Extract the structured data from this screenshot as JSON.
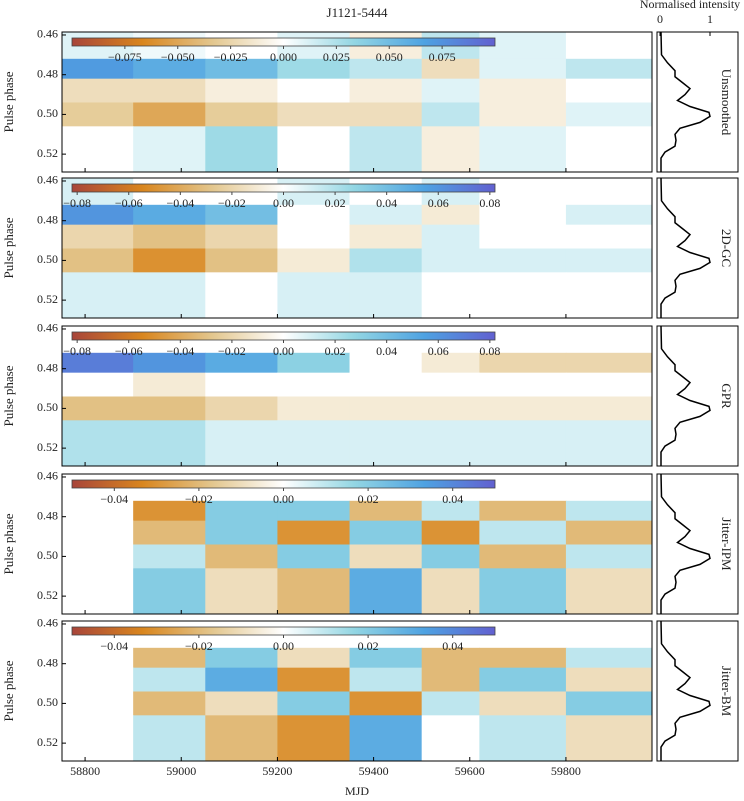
{
  "chart_data": {
    "type": "heatmap",
    "title": "J1121-5444",
    "xlabel": "MJD",
    "ylabel": "Pulse phase",
    "xlim": [
      58752,
      59979
    ],
    "xticks": [
      58800,
      59000,
      59200,
      59400,
      59600,
      59800
    ],
    "ylim": [
      0.4585,
      0.529
    ],
    "yticks": [
      0.46,
      0.48,
      {
        "value": 0.5,
        "label": "0.50"
      },
      0.52
    ],
    "x_edges": [
      58752,
      58900,
      59050,
      59200,
      59350,
      59500,
      59620,
      59800,
      59979
    ],
    "y_edges": [
      0.4585,
      0.472,
      0.482,
      0.494,
      0.506,
      0.529
    ],
    "colorscale": [
      "#a8453a",
      "#d9861e",
      "#e3c78f",
      "#ffffff",
      "#93d6e3",
      "#4ea2e2",
      "#6260d0"
    ],
    "panels": [
      {
        "label": "Unsmoothed",
        "clim": [
          -0.1,
          0.1
        ],
        "cticks": [
          {
            "value": -0.075,
            "label": "−0.075"
          },
          {
            "value": -0.05,
            "label": "−0.050"
          },
          {
            "value": -0.025,
            "label": "−0.025"
          },
          {
            "value": 0,
            "label": "0.000"
          },
          0.025,
          {
            "value": 0.05,
            "label": "0.050"
          },
          0.075
        ],
        "z": [
          [
            0.01,
            0.005,
            0.0,
            0.01,
            -0.01,
            0.02,
            0.01,
            0.0
          ],
          [
            0.07,
            0.06,
            0.05,
            0.03,
            0.02,
            -0.02,
            0.01,
            0.02
          ],
          [
            -0.02,
            -0.02,
            -0.01,
            0.0,
            -0.01,
            0.01,
            -0.01,
            0.0
          ],
          [
            -0.03,
            -0.05,
            -0.03,
            -0.02,
            -0.02,
            0.02,
            -0.01,
            0.01
          ],
          [
            0.0,
            0.01,
            0.03,
            0.0,
            0.02,
            -0.01,
            0.01,
            0.0
          ]
        ]
      },
      {
        "label": "2D-GC",
        "clim": [
          -0.082,
          0.082
        ],
        "cticks": [
          {
            "value": -0.08,
            "label": "−0.08"
          },
          {
            "value": -0.06,
            "label": "−0.06"
          },
          {
            "value": -0.04,
            "label": "−0.04"
          },
          {
            "value": -0.02,
            "label": "−0.02"
          },
          {
            "value": 0,
            "label": "0.00"
          },
          0.02,
          0.04,
          0.06,
          0.08
        ],
        "z": [
          [
            0.01,
            0.0,
            0.0,
            0.01,
            0.0,
            0.01,
            0.0,
            0.0
          ],
          [
            0.06,
            0.05,
            0.04,
            0.0,
            0.01,
            -0.01,
            0.0,
            0.01
          ],
          [
            -0.02,
            -0.03,
            -0.02,
            0.0,
            -0.01,
            0.01,
            0.0,
            0.0
          ],
          [
            -0.03,
            -0.05,
            -0.03,
            -0.01,
            0.02,
            0.01,
            0.01,
            0.01
          ],
          [
            0.01,
            0.01,
            0.0,
            0.01,
            0.01,
            0.0,
            0.0,
            0.0
          ]
        ]
      },
      {
        "label": "GPR",
        "clim": [
          -0.082,
          0.082
        ],
        "cticks": [
          {
            "value": -0.08,
            "label": "−0.08"
          },
          {
            "value": -0.06,
            "label": "−0.06"
          },
          {
            "value": -0.04,
            "label": "−0.04"
          },
          {
            "value": -0.02,
            "label": "−0.02"
          },
          {
            "value": 0,
            "label": "0.00"
          },
          0.02,
          0.04,
          0.06,
          0.08
        ],
        "z": [
          [
            0.0,
            0.0,
            0.0,
            0.0,
            0.0,
            0.0,
            0.0,
            0.0
          ],
          [
            0.07,
            0.06,
            0.05,
            0.03,
            0.0,
            -0.01,
            -0.02,
            -0.02
          ],
          [
            0.0,
            -0.01,
            0.0,
            0.0,
            0.0,
            0.0,
            0.0,
            0.0
          ],
          [
            -0.03,
            -0.03,
            -0.02,
            -0.01,
            -0.01,
            -0.01,
            -0.01,
            -0.01
          ],
          [
            0.02,
            0.02,
            0.01,
            0.01,
            0.01,
            0.01,
            0.01,
            0.01
          ]
        ]
      },
      {
        "label": "Jitter-IPM",
        "clim": [
          -0.05,
          0.05
        ],
        "cticks": [
          {
            "value": -0.04,
            "label": "−0.04"
          },
          {
            "value": -0.02,
            "label": "−0.02"
          },
          {
            "value": 0,
            "label": "0.00"
          },
          0.02,
          0.04
        ],
        "z": [
          [
            0.0,
            0.0,
            0.0,
            0.0,
            0.0,
            0.0,
            0.0,
            0.0
          ],
          [
            0.0,
            -0.03,
            0.02,
            0.02,
            -0.02,
            0.01,
            -0.02,
            0.01
          ],
          [
            0.0,
            -0.02,
            0.02,
            -0.03,
            0.02,
            -0.03,
            0.01,
            -0.02
          ],
          [
            0.0,
            0.01,
            -0.02,
            0.02,
            -0.01,
            0.02,
            -0.02,
            0.01
          ],
          [
            0.0,
            0.02,
            -0.01,
            -0.02,
            0.03,
            -0.01,
            0.02,
            -0.01
          ]
        ]
      },
      {
        "label": "Jitter-BM",
        "clim": [
          -0.05,
          0.05
        ],
        "cticks": [
          {
            "value": -0.04,
            "label": "−0.04"
          },
          {
            "value": -0.02,
            "label": "−0.02"
          },
          {
            "value": 0,
            "label": "0.00"
          },
          0.02,
          0.04
        ],
        "z": [
          [
            0.0,
            0.0,
            0.0,
            0.0,
            0.0,
            0.0,
            0.0,
            0.0
          ],
          [
            0.0,
            -0.02,
            0.02,
            -0.01,
            0.02,
            -0.02,
            -0.02,
            0.01
          ],
          [
            0.0,
            0.01,
            0.03,
            -0.03,
            0.01,
            -0.02,
            0.02,
            -0.01
          ],
          [
            0.0,
            -0.02,
            -0.01,
            0.02,
            -0.03,
            0.01,
            -0.01,
            0.02
          ],
          [
            0.0,
            0.01,
            -0.02,
            -0.03,
            0.03,
            0.0,
            0.01,
            -0.01
          ]
        ]
      }
    ],
    "profile": {
      "type": "line",
      "xlabel": "Normalised intensity",
      "xlim": [
        -0.06,
        1.56
      ],
      "xticks": [
        0,
        1
      ],
      "color": "#000000",
      "phase": [
        0.4585,
        0.47,
        0.474,
        0.478,
        0.481,
        0.484,
        0.487,
        0.49,
        0.493,
        0.496,
        0.499,
        0.501,
        0.504,
        0.507,
        0.51,
        0.513,
        0.516,
        0.519,
        0.522,
        0.529
      ],
      "values": [
        0.02,
        0.03,
        0.15,
        0.3,
        0.3,
        0.45,
        0.6,
        0.5,
        0.35,
        0.6,
        0.98,
        1.0,
        0.8,
        0.4,
        0.3,
        0.32,
        0.3,
        0.1,
        0.02,
        0.02
      ]
    }
  }
}
